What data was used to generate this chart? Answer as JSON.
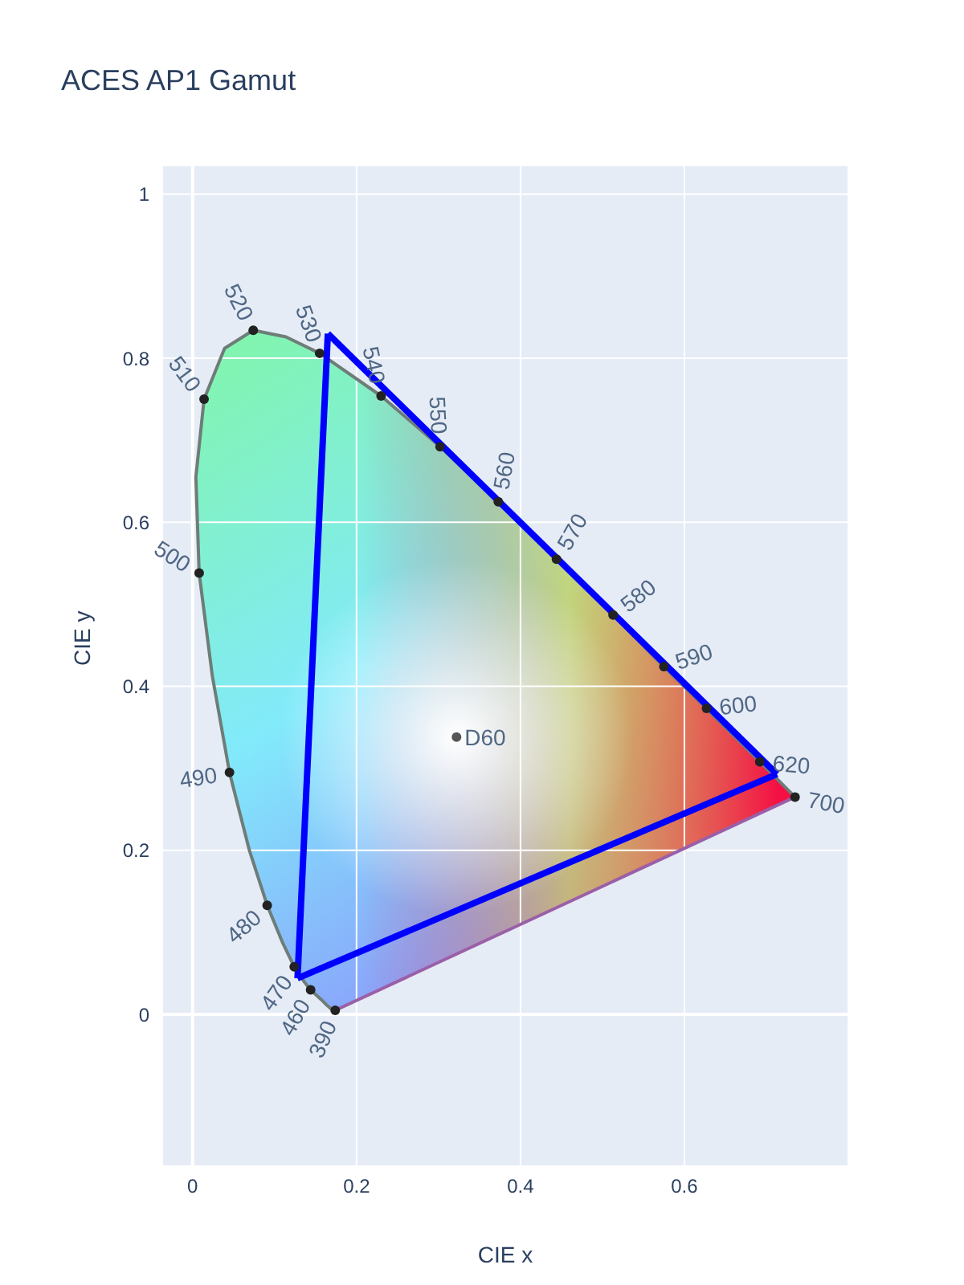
{
  "chart_data": {
    "type": "scatter",
    "title": "ACES AP1 Gamut",
    "xlabel": "CIE x",
    "ylabel": "CIE y",
    "xlim": [
      -0.037,
      0.8
    ],
    "ylim": [
      -0.185,
      1.035
    ],
    "xticks": [
      0,
      0.2,
      0.4,
      0.6
    ],
    "yticks": [
      0,
      0.2,
      0.4,
      0.6,
      0.8,
      1
    ],
    "grid": true,
    "series": [
      {
        "type": "line",
        "color": "#6e7d78",
        "marker": "none",
        "x": [
          0.174,
          0.173,
          0.171,
          0.164,
          0.157,
          0.144,
          0.136,
          0.124,
          0.11,
          0.091,
          0.069,
          0.045,
          0.024,
          0.008,
          0.004,
          0.014,
          0.039,
          0.074,
          0.114,
          0.155,
          0.23,
          0.302,
          0.373,
          0.444,
          0.513,
          0.575,
          0.627,
          0.692,
          0.735
        ],
        "values": [
          0.005,
          0.005,
          0.005,
          0.011,
          0.018,
          0.03,
          0.04,
          0.058,
          0.087,
          0.133,
          0.201,
          0.295,
          0.413,
          0.538,
          0.655,
          0.75,
          0.812,
          0.834,
          0.826,
          0.806,
          0.754,
          0.692,
          0.625,
          0.555,
          0.487,
          0.424,
          0.373,
          0.308,
          0.265
        ]
      },
      {
        "type": "line",
        "color": "#9b5fa8",
        "marker": "none",
        "x": [
          0.735,
          0.174
        ],
        "values": [
          0.265,
          0.005
        ]
      },
      {
        "color": "#222222",
        "marker": "circle",
        "x": [
          0.174,
          0.144,
          0.124,
          0.091,
          0.045,
          0.008,
          0.014,
          0.074,
          0.155,
          0.23,
          0.302,
          0.373,
          0.444,
          0.513,
          0.575,
          0.627,
          0.692,
          0.735
        ],
        "values": [
          0.005,
          0.03,
          0.058,
          0.133,
          0.295,
          0.538,
          0.75,
          0.834,
          0.806,
          0.754,
          0.692,
          0.625,
          0.555,
          0.487,
          0.424,
          0.373,
          0.308,
          0.265
        ]
      },
      {
        "type": "line",
        "color": "#0000ff",
        "marker": "none",
        "x": [
          0.165,
          0.713
        ],
        "values": [
          0.83,
          0.293
        ]
      },
      {
        "type": "line",
        "color": "#0000ff",
        "marker": "none",
        "x": [
          0.128,
          0.713
        ],
        "values": [
          0.044,
          0.293
        ]
      },
      {
        "type": "line",
        "color": "#0000ff",
        "marker": "none",
        "x": [
          0.128,
          0.165
        ],
        "values": [
          0.044,
          0.83
        ]
      },
      {
        "color": "#555555",
        "marker": "circle",
        "x": [
          0.322
        ],
        "values": [
          0.338
        ]
      }
    ],
    "annotations": [
      {
        "text": "D60",
        "x": 0.322,
        "y": 0.338
      },
      {
        "text": "390",
        "x": 0.174,
        "y": 0.005
      },
      {
        "text": "460",
        "x": 0.144,
        "y": 0.03
      },
      {
        "text": "470",
        "x": 0.124,
        "y": 0.058
      },
      {
        "text": "480",
        "x": 0.091,
        "y": 0.133
      },
      {
        "text": "490",
        "x": 0.045,
        "y": 0.295
      },
      {
        "text": "500",
        "x": 0.008,
        "y": 0.538
      },
      {
        "text": "510",
        "x": 0.014,
        "y": 0.75
      },
      {
        "text": "520",
        "x": 0.074,
        "y": 0.834
      },
      {
        "text": "530",
        "x": 0.155,
        "y": 0.806
      },
      {
        "text": "540",
        "x": 0.23,
        "y": 0.754
      },
      {
        "text": "550",
        "x": 0.302,
        "y": 0.692
      },
      {
        "text": "560",
        "x": 0.373,
        "y": 0.625
      },
      {
        "text": "570",
        "x": 0.444,
        "y": 0.555
      },
      {
        "text": "580",
        "x": 0.513,
        "y": 0.487
      },
      {
        "text": "590",
        "x": 0.575,
        "y": 0.424
      },
      {
        "text": "600",
        "x": 0.627,
        "y": 0.373
      },
      {
        "text": "620",
        "x": 0.692,
        "y": 0.308
      },
      {
        "text": "700",
        "x": 0.735,
        "y": 0.265
      }
    ]
  }
}
